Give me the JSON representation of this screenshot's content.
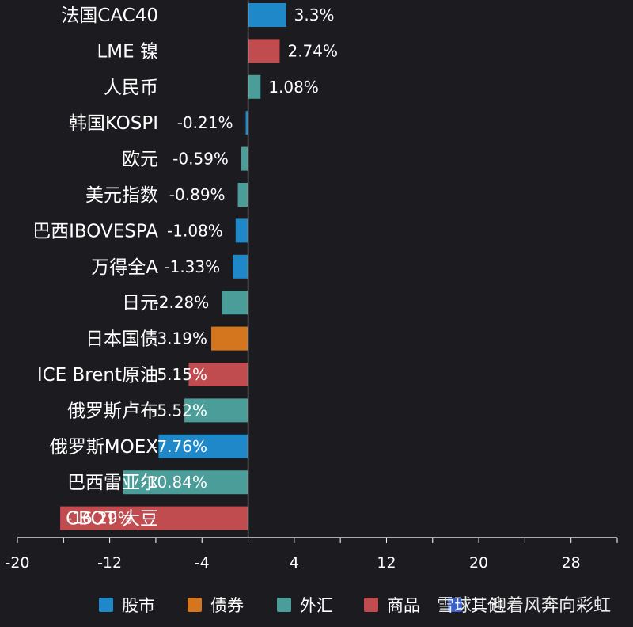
{
  "colors": {
    "background": "#1c1c20",
    "股市": "#1e88c8",
    "债券": "#d4761e",
    "外汇": "#4a9d98",
    "商品": "#c04c50",
    "其他": "#3a5fc8"
  },
  "chart_data": {
    "type": "bar",
    "orientation": "horizontal",
    "categories": [
      "法国CAC40",
      "LME 镍",
      "人民币",
      "韩国KOSPI",
      "欧元",
      "美元指数",
      "巴西IBOVESPA",
      "万得全A",
      "日元",
      "日本国债",
      "ICE Brent原油",
      "俄罗斯卢布",
      "俄罗斯MOEX",
      "巴西雷亚尔",
      "CBOT 大豆"
    ],
    "values": [
      3.3,
      2.74,
      1.08,
      -0.21,
      -0.59,
      -0.89,
      -1.08,
      -1.33,
      -2.28,
      -3.19,
      -5.15,
      -5.52,
      -7.76,
      -10.84,
      -16.29
    ],
    "value_labels": [
      "3.3%",
      "2.74%",
      "1.08%",
      "-0.21%",
      "-0.59%",
      "-0.89%",
      "-1.08%",
      "-1.33%",
      "-2.28%",
      "-3.19%",
      "-5.15%",
      "-5.52%",
      "-7.76%",
      "-10.84%",
      "-16.29%"
    ],
    "groups": [
      "股市",
      "商品",
      "外汇",
      "股市",
      "外汇",
      "外汇",
      "股市",
      "股市",
      "外汇",
      "债券",
      "商品",
      "外汇",
      "股市",
      "外汇",
      "商品"
    ],
    "xlim": [
      -20,
      32
    ],
    "xticks": [
      -20,
      -12,
      -4,
      4,
      12,
      20,
      28
    ],
    "legend": {
      "placement": "bottom",
      "entries": [
        {
          "name": "股市",
          "color": "#1e88c8"
        },
        {
          "name": "债券",
          "color": "#d4761e"
        },
        {
          "name": "外汇",
          "color": "#4a9d98"
        },
        {
          "name": "商品",
          "color": "#c04c50"
        },
        {
          "name": "其他",
          "color": "#3a5fc8"
        }
      ]
    },
    "grid": false
  },
  "watermark": "雪球：迎着风奔向彩虹"
}
